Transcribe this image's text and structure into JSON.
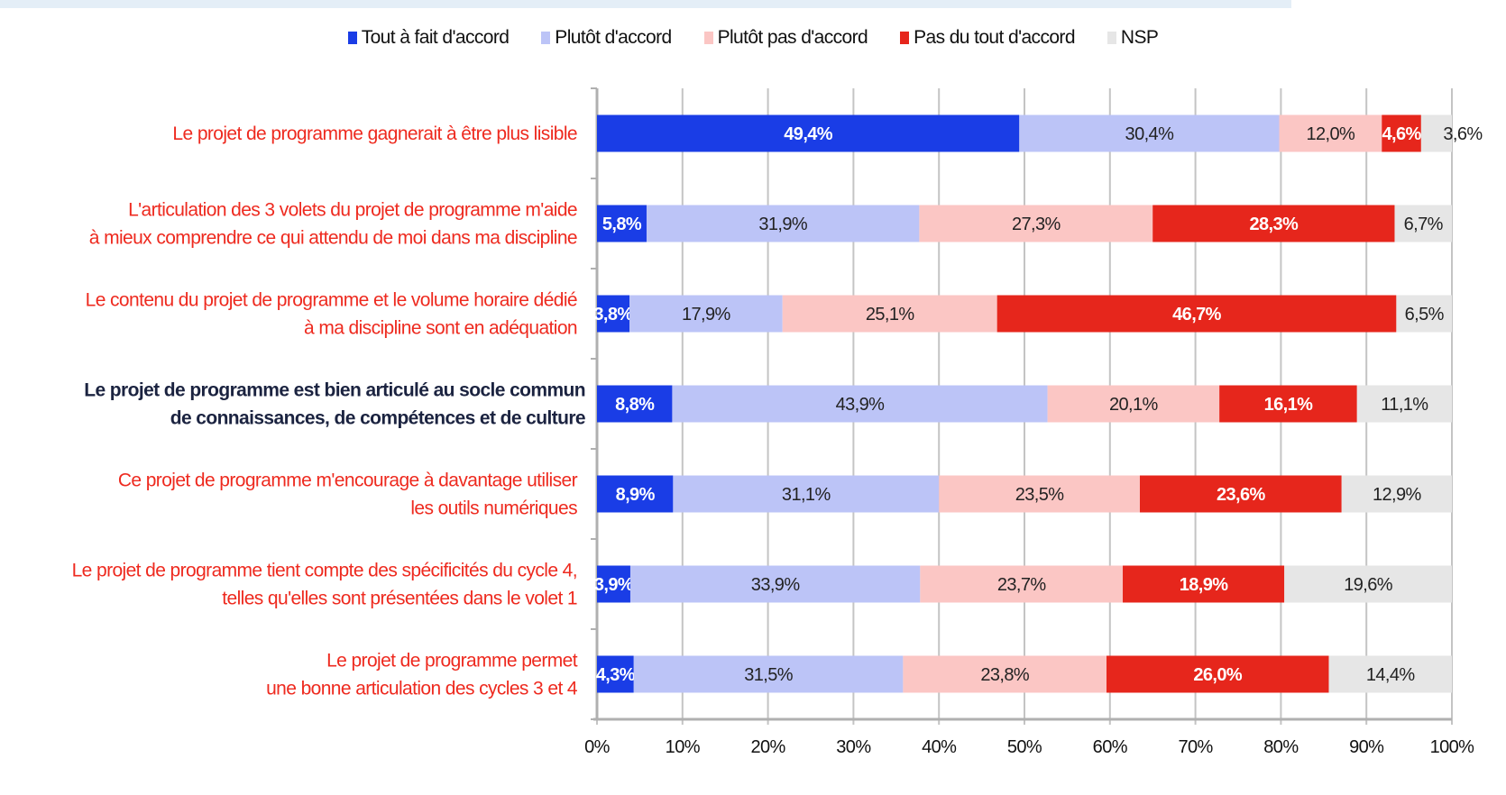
{
  "chart_data": {
    "type": "bar",
    "orientation": "horizontal",
    "stacked": true,
    "legend_position": "top",
    "grid": true,
    "xlim": [
      0,
      100
    ],
    "x_ticks": [
      "0%",
      "10%",
      "20%",
      "30%",
      "40%",
      "50%",
      "60%",
      "70%",
      "80%",
      "90%",
      "100%"
    ],
    "series": [
      {
        "name": "Tout à fait d'accord",
        "color": "#1a3de6",
        "label_color": "#ffffff",
        "values": [
          49.4,
          5.8,
          3.8,
          8.8,
          8.9,
          3.9,
          4.3
        ],
        "labels": [
          "49,4%",
          "5,8%",
          "3,8%",
          "8,8%",
          "8,9%",
          "3,9%",
          "4,3%"
        ]
      },
      {
        "name": "Plutôt d'accord",
        "color": "#bcc4f7",
        "label_color": "#222222",
        "values": [
          30.4,
          31.9,
          17.9,
          43.9,
          31.1,
          33.9,
          31.5
        ],
        "labels": [
          "30,4%",
          "31,9%",
          "17,9%",
          "43,9%",
          "31,1%",
          "33,9%",
          "31,5%"
        ]
      },
      {
        "name": "Plutôt pas d'accord",
        "color": "#fbc6c4",
        "label_color": "#222222",
        "values": [
          12.0,
          27.3,
          25.1,
          20.1,
          23.5,
          23.7,
          23.8
        ],
        "labels": [
          "12,0%",
          "27,3%",
          "25,1%",
          "20,1%",
          "23,5%",
          "23,7%",
          "23,8%"
        ]
      },
      {
        "name": "Pas du tout d'accord",
        "color": "#e6261c",
        "label_color": "#ffffff",
        "values": [
          4.6,
          28.3,
          46.7,
          16.1,
          23.6,
          18.9,
          26.0
        ],
        "labels": [
          "4,6%",
          "28,3%",
          "46,7%",
          "16,1%",
          "23,6%",
          "18,9%",
          "26,0%"
        ]
      },
      {
        "name": "NSP",
        "color": "#e6e6e6",
        "label_color": "#222222",
        "values": [
          3.6,
          6.7,
          6.5,
          11.1,
          12.9,
          19.6,
          14.4
        ],
        "labels": [
          "3,6%",
          "6,7%",
          "6,5%",
          "11,1%",
          "12,9%",
          "19,6%",
          "14,4%"
        ]
      }
    ],
    "categories": [
      {
        "lines": [
          "Le projet de programme gagnerait à être plus lisible"
        ],
        "color": "#ee2a1f",
        "bold": false
      },
      {
        "lines": [
          "L'articulation des 3 volets du projet de programme m'aide",
          "à mieux comprendre ce qui attendu de moi dans ma discipline"
        ],
        "color": "#ee2a1f",
        "bold": false
      },
      {
        "lines": [
          "Le contenu du projet de programme et le volume horaire dédié",
          "à ma discipline sont en adéquation"
        ],
        "color": "#ee2a1f",
        "bold": false
      },
      {
        "lines": [
          "Le projet de programme est bien articulé au socle commun",
          "de connaissances, de compétences et de culture"
        ],
        "color": "#1b2340",
        "bold": true
      },
      {
        "lines": [
          "Ce projet de programme m'encourage à davantage utiliser",
          "les outils numériques"
        ],
        "color": "#ee2a1f",
        "bold": false
      },
      {
        "lines": [
          "Le projet de programme tient compte des spécificités du cycle 4,",
          "telles qu'elles sont présentées dans le volet 1"
        ],
        "color": "#ee2a1f",
        "bold": false
      },
      {
        "lines": [
          "Le projet de programme permet",
          "une bonne articulation des cycles 3 et 4"
        ],
        "color": "#ee2a1f",
        "bold": false
      }
    ]
  }
}
